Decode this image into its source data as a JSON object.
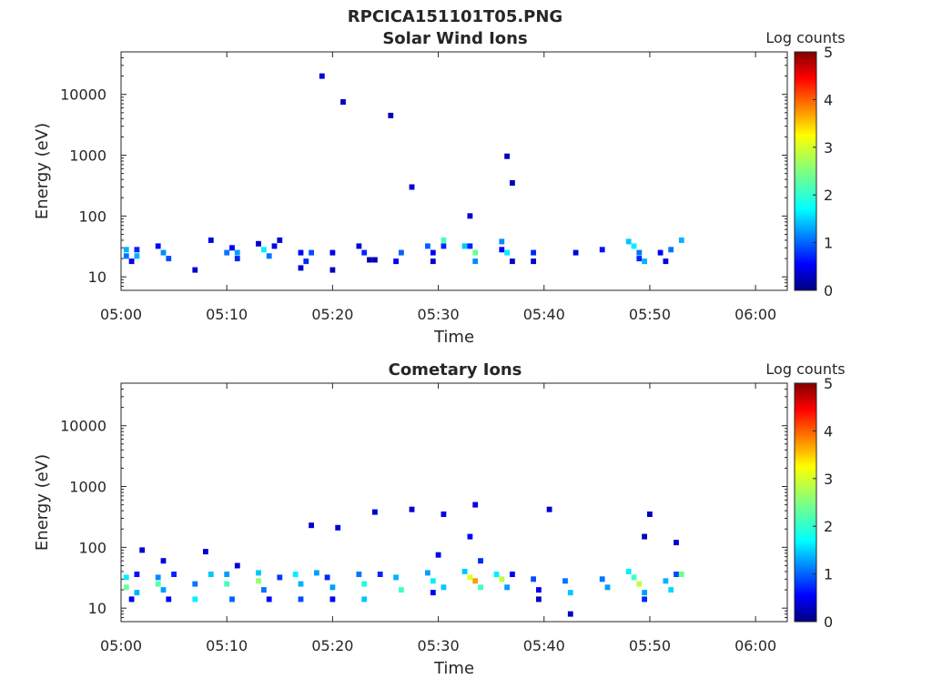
{
  "figure": {
    "title": "RPCICA151101T05.PNG"
  },
  "chart_data": [
    {
      "type": "heatmap",
      "title": "Solar Wind Ions",
      "xlabel": "Time",
      "ylabel": "Energy (eV)",
      "y_scale": "log",
      "y_range": [
        6,
        50000
      ],
      "x_range": [
        "05:00",
        "06:03"
      ],
      "x_ticks": [
        "05:00",
        "05:10",
        "05:20",
        "05:30",
        "05:40",
        "05:50",
        "06:00"
      ],
      "y_ticks": [
        "10",
        "100",
        "1000",
        "10000"
      ],
      "colorbar": {
        "label": "Log counts",
        "range": [
          0,
          5
        ],
        "ticks": [
          "0",
          "1",
          "2",
          "3",
          "4",
          "5"
        ],
        "colormap": "jet"
      },
      "grid": false,
      "cells": [
        [
          "05:00.5",
          28,
          1.5
        ],
        [
          "05:00.5",
          22,
          1.2
        ],
        [
          "05:01.0",
          18,
          0.5
        ],
        [
          "05:01.5",
          28,
          0.8
        ],
        [
          "05:01.5",
          22,
          1.5
        ],
        [
          "05:03.5",
          32,
          0.6
        ],
        [
          "05:04.0",
          25,
          1.3
        ],
        [
          "05:04.5",
          20,
          1.0
        ],
        [
          "05:07.0",
          13,
          0.4
        ],
        [
          "05:08.5",
          40,
          0.5
        ],
        [
          "05:10.0",
          25,
          1.2
        ],
        [
          "05:10.5",
          30,
          0.6
        ],
        [
          "05:11.0",
          20,
          0.8
        ],
        [
          "05:11.0",
          25,
          1.4
        ],
        [
          "05:13.0",
          35,
          0.4
        ],
        [
          "05:13.5",
          28,
          1.8
        ],
        [
          "05:14.0",
          22,
          1.2
        ],
        [
          "05:14.5",
          32,
          0.5
        ],
        [
          "05:15.0",
          40,
          0.4
        ],
        [
          "05:17.0",
          25,
          0.6
        ],
        [
          "05:17.0",
          14,
          0.4
        ],
        [
          "05:17.5",
          18,
          0.8
        ],
        [
          "05:18.0",
          25,
          1.0
        ],
        [
          "05:20.0",
          25,
          0.5
        ],
        [
          "05:20.0",
          13,
          0.3
        ],
        [
          "05:19.0",
          20000,
          0.4
        ],
        [
          "05:21.0",
          7500,
          0.3
        ],
        [
          "05:22.5",
          32,
          0.4
        ],
        [
          "05:23.0",
          25,
          0.8
        ],
        [
          "05:23.5",
          19,
          0.2
        ],
        [
          "05:24.0",
          19,
          0.3
        ],
        [
          "05:25.5",
          4500,
          0.3
        ],
        [
          "05:26.0",
          18,
          0.6
        ],
        [
          "05:26.5",
          25,
          1.1
        ],
        [
          "05:27.5",
          300,
          0.4
        ],
        [
          "05:29.0",
          32,
          1.1
        ],
        [
          "05:29.5",
          25,
          0.6
        ],
        [
          "05:29.5",
          18,
          0.4
        ],
        [
          "05:30.5",
          32,
          0.8
        ],
        [
          "05:30.5",
          40,
          2.2
        ],
        [
          "05:32.5",
          32,
          1.6
        ],
        [
          "05:33.0",
          32,
          0.8
        ],
        [
          "05:33.0",
          100,
          0.4
        ],
        [
          "05:33.5",
          25,
          2.4
        ],
        [
          "05:33.5",
          18,
          1.3
        ],
        [
          "05:36.0",
          38,
          1.3
        ],
        [
          "05:36.0",
          28,
          0.6
        ],
        [
          "05:36.5",
          25,
          1.8
        ],
        [
          "05:36.5",
          960,
          0.3
        ],
        [
          "05:37.0",
          350,
          0.3
        ],
        [
          "05:37.0",
          18,
          0.4
        ],
        [
          "05:39.0",
          25,
          0.8
        ],
        [
          "05:39.0",
          18,
          0.4
        ],
        [
          "05:43.0",
          25,
          0.5
        ],
        [
          "05:45.5",
          28,
          0.7
        ],
        [
          "05:48.0",
          38,
          1.6
        ],
        [
          "05:48.5",
          32,
          1.8
        ],
        [
          "05:49.0",
          25,
          1.2
        ],
        [
          "05:49.0",
          20,
          0.8
        ],
        [
          "05:49.5",
          18,
          1.5
        ],
        [
          "05:51.0",
          25,
          0.6
        ],
        [
          "05:51.5",
          18,
          0.5
        ],
        [
          "05:52.0",
          28,
          1.2
        ],
        [
          "05:53.0",
          40,
          1.5
        ]
      ]
    },
    {
      "type": "heatmap",
      "title": "Cometary Ions",
      "xlabel": "Time",
      "ylabel": "Energy (eV)",
      "y_scale": "log",
      "y_range": [
        6,
        50000
      ],
      "x_range": [
        "05:00",
        "06:03"
      ],
      "x_ticks": [
        "05:00",
        "05:10",
        "05:20",
        "05:30",
        "05:40",
        "05:50",
        "06:00"
      ],
      "y_ticks": [
        "10",
        "100",
        "1000",
        "10000"
      ],
      "colorbar": {
        "label": "Log counts",
        "range": [
          0,
          5
        ],
        "ticks": [
          "0",
          "1",
          "2",
          "3",
          "4",
          "5"
        ],
        "colormap": "jet"
      },
      "grid": false,
      "cells": [
        [
          "05:00.5",
          32,
          1.8
        ],
        [
          "05:00.5",
          22,
          2.4
        ],
        [
          "05:01.0",
          14,
          0.5
        ],
        [
          "05:01.5",
          36,
          0.7
        ],
        [
          "05:01.5",
          18,
          1.5
        ],
        [
          "05:02.0",
          90,
          0.4
        ],
        [
          "05:03.5",
          32,
          1.3
        ],
        [
          "05:03.5",
          25,
          2.3
        ],
        [
          "05:04.0",
          20,
          1.4
        ],
        [
          "05:04.0",
          60,
          0.5
        ],
        [
          "05:04.5",
          14,
          0.6
        ],
        [
          "05:05.0",
          36,
          0.8
        ],
        [
          "05:07.0",
          25,
          1.2
        ],
        [
          "05:07.0",
          14,
          1.8
        ],
        [
          "05:08.0",
          85,
          0.4
        ],
        [
          "05:08.5",
          36,
          1.6
        ],
        [
          "05:10.0",
          36,
          1.4
        ],
        [
          "05:10.0",
          25,
          2.2
        ],
        [
          "05:10.5",
          14,
          1.1
        ],
        [
          "05:11.0",
          50,
          0.4
        ],
        [
          "05:13.0",
          38,
          1.6
        ],
        [
          "05:13.0",
          28,
          2.6
        ],
        [
          "05:13.5",
          20,
          1.2
        ],
        [
          "05:14.0",
          14,
          0.6
        ],
        [
          "05:15.0",
          32,
          0.9
        ],
        [
          "05:16.5",
          36,
          1.8
        ],
        [
          "05:17.0",
          25,
          1.5
        ],
        [
          "05:17.0",
          14,
          1.0
        ],
        [
          "05:18.0",
          230,
          0.4
        ],
        [
          "05:18.5",
          38,
          1.4
        ],
        [
          "05:19.5",
          32,
          0.8
        ],
        [
          "05:20.0",
          22,
          1.4
        ],
        [
          "05:20.0",
          14,
          0.6
        ],
        [
          "05:20.5",
          210,
          0.4
        ],
        [
          "05:22.5",
          36,
          1.2
        ],
        [
          "05:23.0",
          25,
          2.0
        ],
        [
          "05:23.0",
          14,
          1.6
        ],
        [
          "05:24.0",
          380,
          0.4
        ],
        [
          "05:24.5",
          36,
          0.8
        ],
        [
          "05:26.0",
          32,
          1.5
        ],
        [
          "05:26.5",
          20,
          2.2
        ],
        [
          "05:27.5",
          420,
          0.4
        ],
        [
          "05:29.0",
          38,
          1.4
        ],
        [
          "05:29.5",
          28,
          1.8
        ],
        [
          "05:29.5",
          18,
          0.6
        ],
        [
          "05:30.0",
          75,
          0.6
        ],
        [
          "05:30.5",
          350,
          0.5
        ],
        [
          "05:30.5",
          22,
          1.6
        ],
        [
          "05:32.5",
          40,
          1.6
        ],
        [
          "05:33.0",
          32,
          3.0
        ],
        [
          "05:33.0",
          150,
          0.6
        ],
        [
          "05:33.5",
          28,
          3.6
        ],
        [
          "05:33.5",
          500,
          0.5
        ],
        [
          "05:34.0",
          22,
          2.2
        ],
        [
          "05:34.0",
          60,
          0.8
        ],
        [
          "05:35.5",
          36,
          1.8
        ],
        [
          "05:36.0",
          30,
          2.8
        ],
        [
          "05:36.5",
          22,
          1.4
        ],
        [
          "05:37.0",
          36,
          0.6
        ],
        [
          "05:39.0",
          30,
          1.0
        ],
        [
          "05:39.5",
          20,
          0.6
        ],
        [
          "05:39.5",
          14,
          0.4
        ],
        [
          "05:40.5",
          420,
          0.4
        ],
        [
          "05:42.0",
          28,
          1.2
        ],
        [
          "05:42.5",
          18,
          1.6
        ],
        [
          "05:42.5",
          8,
          0.3
        ],
        [
          "05:45.5",
          30,
          1.2
        ],
        [
          "05:46.0",
          22,
          1.4
        ],
        [
          "05:48.0",
          40,
          1.8
        ],
        [
          "05:48.5",
          32,
          2.2
        ],
        [
          "05:49.0",
          25,
          2.8
        ],
        [
          "05:49.5",
          18,
          1.4
        ],
        [
          "05:49.5",
          14,
          0.8
        ],
        [
          "05:50.0",
          350,
          0.3
        ],
        [
          "05:49.5",
          150,
          0.3
        ],
        [
          "05:51.5",
          28,
          1.5
        ],
        [
          "05:52.0",
          20,
          1.7
        ],
        [
          "05:52.5",
          36,
          1.0
        ],
        [
          "05:52.5",
          120,
          0.4
        ],
        [
          "05:53.0",
          36,
          2.4
        ]
      ]
    }
  ]
}
